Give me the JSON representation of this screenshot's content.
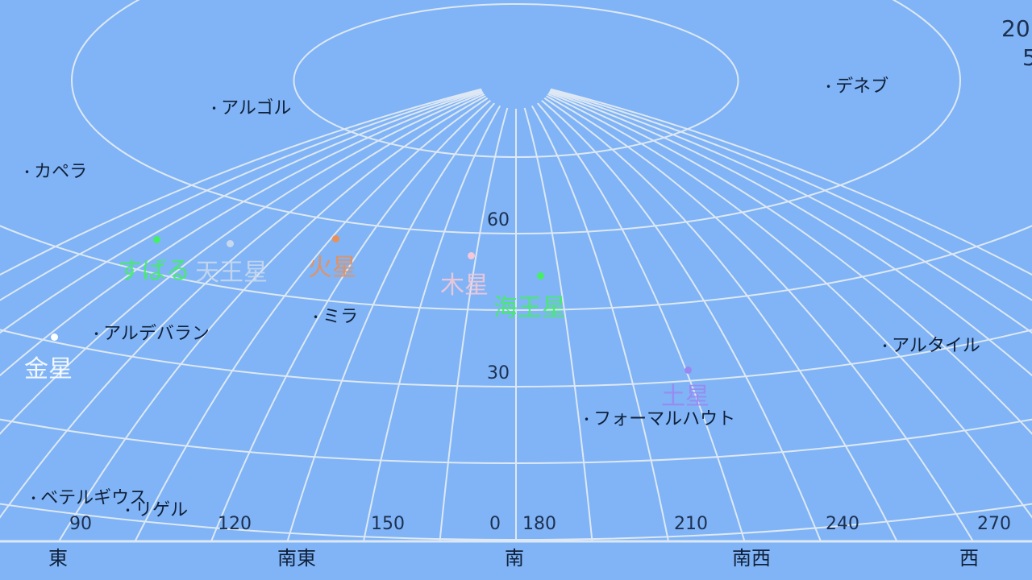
{
  "header": {
    "year_fragment": "20",
    "date_fragment": "5"
  },
  "stars": [
    {
      "name": "アルゴル"
    },
    {
      "name": "デネブ"
    },
    {
      "name": "カペラ"
    },
    {
      "name": "アルデバラン"
    },
    {
      "name": "ミラ"
    },
    {
      "name": "アルタイル"
    },
    {
      "name": "フォーマルハウト"
    },
    {
      "name": "ベテルギウス"
    },
    {
      "name": "リゲル"
    }
  ],
  "planets": [
    {
      "name": "すばる",
      "color": "#44ee66"
    },
    {
      "name": "天王星",
      "color": "#c8d8ee"
    },
    {
      "name": "火星",
      "color": "#e8905a"
    },
    {
      "name": "木星",
      "color": "#f4c8d8"
    },
    {
      "name": "海王星",
      "color": "#44ee66"
    },
    {
      "name": "金星",
      "color": "#ffffff"
    },
    {
      "name": "土星",
      "color": "#9a88f0"
    }
  ],
  "altitude_labels": [
    "60",
    "30",
    "0"
  ],
  "azimuth_labels": [
    "90",
    "120",
    "150",
    "180",
    "210",
    "240",
    "270"
  ],
  "directions": [
    "東",
    "南東",
    "南",
    "南西",
    "西"
  ],
  "colors": {
    "background": "#80b4f6",
    "grid": "#dde8f4",
    "text": "#10203a"
  }
}
